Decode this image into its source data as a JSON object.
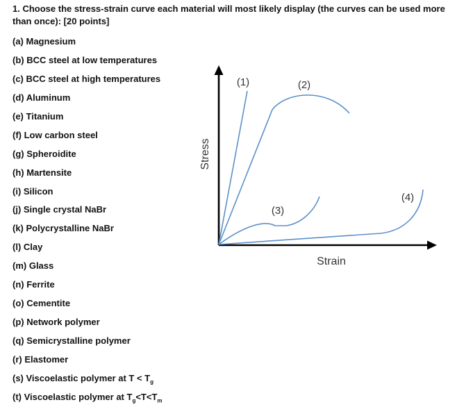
{
  "question": {
    "text": "1. Choose the stress-strain curve each material will most likely display (the curves can be used more than once): [20 points]"
  },
  "materials": [
    {
      "label": "(a) Magnesium"
    },
    {
      "label": "(b) BCC steel at low temperatures"
    },
    {
      "label": "(c) BCC steel at high temperatures"
    },
    {
      "label": "(d) Aluminum"
    },
    {
      "label": "(e) Titanium"
    },
    {
      "label": "(f) Low carbon steel"
    },
    {
      "label": "(g) Spheroidite"
    },
    {
      "label": "(h) Martensite"
    },
    {
      "label": "(i) Silicon"
    },
    {
      "label": "(j) Single crystal NaBr"
    },
    {
      "label": "(k) Polycrystalline NaBr"
    },
    {
      "label": "(l) Clay"
    },
    {
      "label": "(m) Glass"
    },
    {
      "label": "(n) Ferrite"
    },
    {
      "label": "(o) Cementite"
    },
    {
      "label": "(p) Network polymer"
    },
    {
      "label": "(q) Semicrystalline polymer"
    },
    {
      "label": "(r) Elastomer"
    },
    {
      "label": "(s) Viscoelastic polymer at T < T",
      "sub": "g"
    },
    {
      "label": "(t) Viscoelastic polymer at T",
      "sub": "g",
      "mid": "<T<T",
      "sub2": "m"
    }
  ],
  "diagram": {
    "y_axis_label": "Stress",
    "x_axis_label": "Strain",
    "curve_labels": [
      "(1)",
      "(2)",
      "(3)",
      "(4)"
    ],
    "axis_color": "#000000",
    "curve_color": "#5b8fc9"
  }
}
